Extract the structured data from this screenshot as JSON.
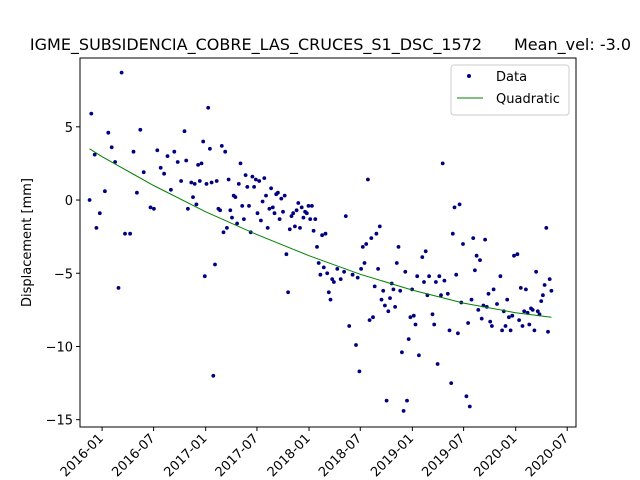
{
  "chart_data": {
    "type": "scatter",
    "title": "IGME_SUBSIDENCIA_COBRE_LAS_CRUCES_S1_DSC_1572",
    "subtitle": "Mean_vel: -3.0",
    "xlabel": "",
    "ylabel": "Displacement [mm]",
    "xlim": [
      "2015-10-15",
      "2020-08-01"
    ],
    "ylim": [
      -15.5,
      9.7
    ],
    "x_ticks": [
      "2016-01",
      "2016-07",
      "2017-01",
      "2017-07",
      "2018-01",
      "2018-07",
      "2019-01",
      "2019-07",
      "2020-01",
      "2020-07"
    ],
    "y_ticks": [
      -15,
      -10,
      -5,
      0,
      5
    ],
    "grid": false,
    "legend_position": "top-right",
    "colors": {
      "data": "#000080",
      "fit": "#008000"
    },
    "series": [
      {
        "name": "Data",
        "kind": "markers",
        "points": [
          [
            "2015-11-18",
            0.0
          ],
          [
            "2015-11-24",
            5.9
          ],
          [
            "2015-12-06",
            3.1
          ],
          [
            "2015-12-12",
            -1.9
          ],
          [
            "2015-12-24",
            -0.9
          ],
          [
            "2016-01-11",
            0.6
          ],
          [
            "2016-01-23",
            4.6
          ],
          [
            "2016-02-04",
            3.6
          ],
          [
            "2016-02-16",
            2.6
          ],
          [
            "2016-02-28",
            -6.0
          ],
          [
            "2016-03-10",
            8.7
          ],
          [
            "2016-03-22",
            -2.3
          ],
          [
            "2016-04-09",
            -2.3
          ],
          [
            "2016-04-21",
            3.3
          ],
          [
            "2016-05-03",
            0.5
          ],
          [
            "2016-05-15",
            4.8
          ],
          [
            "2016-05-27",
            1.9
          ],
          [
            "2016-06-20",
            -0.5
          ],
          [
            "2016-07-02",
            -0.6
          ],
          [
            "2016-07-14",
            3.4
          ],
          [
            "2016-07-26",
            2.2
          ],
          [
            "2016-08-07",
            1.8
          ],
          [
            "2016-08-19",
            3.0
          ],
          [
            "2016-08-31",
            0.7
          ],
          [
            "2016-09-12",
            3.3
          ],
          [
            "2016-09-24",
            2.6
          ],
          [
            "2016-10-06",
            1.3
          ],
          [
            "2016-10-18",
            4.7
          ],
          [
            "2016-10-24",
            2.7
          ],
          [
            "2016-10-30",
            -0.6
          ],
          [
            "2016-11-11",
            1.2
          ],
          [
            "2016-11-17",
            0.2
          ],
          [
            "2016-11-23",
            1.1
          ],
          [
            "2016-11-29",
            -0.3
          ],
          [
            "2016-12-05",
            2.4
          ],
          [
            "2016-12-11",
            1.3
          ],
          [
            "2016-12-17",
            2.5
          ],
          [
            "2016-12-23",
            4.0
          ],
          [
            "2016-12-29",
            -5.2
          ],
          [
            "2017-01-04",
            1.1
          ],
          [
            "2017-01-10",
            6.3
          ],
          [
            "2017-01-16",
            3.5
          ],
          [
            "2017-01-22",
            1.2
          ],
          [
            "2017-01-28",
            -12.0
          ],
          [
            "2017-02-03",
            -4.4
          ],
          [
            "2017-02-09",
            1.3
          ],
          [
            "2017-02-15",
            -0.6
          ],
          [
            "2017-02-21",
            -0.7
          ],
          [
            "2017-02-27",
            3.7
          ],
          [
            "2017-03-05",
            -2.2
          ],
          [
            "2017-03-11",
            3.3
          ],
          [
            "2017-03-17",
            -1.9
          ],
          [
            "2017-03-23",
            1.4
          ],
          [
            "2017-03-29",
            -0.7
          ],
          [
            "2017-04-04",
            -1.2
          ],
          [
            "2017-04-10",
            0.3
          ],
          [
            "2017-04-16",
            0.2
          ],
          [
            "2017-04-22",
            -1.6
          ],
          [
            "2017-04-28",
            1.1
          ],
          [
            "2017-05-04",
            2.5
          ],
          [
            "2017-05-10",
            -0.4
          ],
          [
            "2017-05-16",
            -1.3
          ],
          [
            "2017-05-22",
            1.7
          ],
          [
            "2017-05-28",
            0.9
          ],
          [
            "2017-06-03",
            -0.4
          ],
          [
            "2017-06-09",
            -2.2
          ],
          [
            "2017-06-15",
            1.6
          ],
          [
            "2017-06-21",
            0.9
          ],
          [
            "2017-06-27",
            1.4
          ],
          [
            "2017-07-03",
            -0.9
          ],
          [
            "2017-07-09",
            1.3
          ],
          [
            "2017-07-15",
            -1.4
          ],
          [
            "2017-07-21",
            -0.1
          ],
          [
            "2017-07-27",
            1.5
          ],
          [
            "2017-08-02",
            0.3
          ],
          [
            "2017-08-08",
            -1.9
          ],
          [
            "2017-08-14",
            -0.6
          ],
          [
            "2017-08-20",
            0.8
          ],
          [
            "2017-08-26",
            -0.5
          ],
          [
            "2017-09-01",
            -0.9
          ],
          [
            "2017-09-07",
            0.4
          ],
          [
            "2017-09-13",
            0.5
          ],
          [
            "2017-09-19",
            -1.3
          ],
          [
            "2017-09-25",
            0.1
          ],
          [
            "2017-10-01",
            -0.8
          ],
          [
            "2017-10-07",
            0.3
          ],
          [
            "2017-10-13",
            -3.7
          ],
          [
            "2017-10-19",
            -6.3
          ],
          [
            "2017-10-25",
            -2.0
          ],
          [
            "2017-10-31",
            -1.1
          ],
          [
            "2017-11-06",
            -0.9
          ],
          [
            "2017-11-12",
            -1.8
          ],
          [
            "2017-11-18",
            -0.7
          ],
          [
            "2017-11-24",
            -0.2
          ],
          [
            "2017-11-30",
            -1.9
          ],
          [
            "2017-12-06",
            -0.5
          ],
          [
            "2017-12-12",
            -1.2
          ],
          [
            "2017-12-18",
            -0.8
          ],
          [
            "2017-12-24",
            -0.9
          ],
          [
            "2017-12-30",
            -0.4
          ],
          [
            "2018-01-05",
            -1.3
          ],
          [
            "2018-01-11",
            -0.4
          ],
          [
            "2018-01-17",
            -2.1
          ],
          [
            "2018-01-23",
            -1.3
          ],
          [
            "2018-01-29",
            -3.2
          ],
          [
            "2018-02-04",
            -4.3
          ],
          [
            "2018-02-10",
            -5.1
          ],
          [
            "2018-02-16",
            -2.4
          ],
          [
            "2018-02-22",
            -4.6
          ],
          [
            "2018-02-28",
            -2.3
          ],
          [
            "2018-03-06",
            -5.0
          ],
          [
            "2018-03-12",
            -6.3
          ],
          [
            "2018-03-18",
            -6.8
          ],
          [
            "2018-03-24",
            -5.4
          ],
          [
            "2018-03-30",
            -5.6
          ],
          [
            "2018-04-11",
            -4.7
          ],
          [
            "2018-04-23",
            -5.4
          ],
          [
            "2018-05-05",
            -4.9
          ],
          [
            "2018-05-11",
            -1.1
          ],
          [
            "2018-05-23",
            -8.6
          ],
          [
            "2018-06-04",
            -5.1
          ],
          [
            "2018-06-16",
            -9.9
          ],
          [
            "2018-06-22",
            -5.3
          ],
          [
            "2018-06-28",
            -11.7
          ],
          [
            "2018-07-04",
            -4.7
          ],
          [
            "2018-07-10",
            -3.2
          ],
          [
            "2018-07-16",
            -4.3
          ],
          [
            "2018-07-22",
            -3.0
          ],
          [
            "2018-07-28",
            1.4
          ],
          [
            "2018-08-03",
            -8.2
          ],
          [
            "2018-08-09",
            -2.6
          ],
          [
            "2018-08-15",
            -8.0
          ],
          [
            "2018-08-21",
            -5.9
          ],
          [
            "2018-08-27",
            -2.3
          ],
          [
            "2018-09-02",
            -4.7
          ],
          [
            "2018-09-08",
            -1.8
          ],
          [
            "2018-09-14",
            -6.8
          ],
          [
            "2018-09-20",
            -6.2
          ],
          [
            "2018-09-26",
            -7.2
          ],
          [
            "2018-10-02",
            -13.7
          ],
          [
            "2018-10-08",
            -7.6
          ],
          [
            "2018-10-14",
            -6.7
          ],
          [
            "2018-10-20",
            -5.7
          ],
          [
            "2018-10-26",
            -6.1
          ],
          [
            "2018-11-01",
            -7.3
          ],
          [
            "2018-11-07",
            -4.3
          ],
          [
            "2018-11-13",
            -3.2
          ],
          [
            "2018-11-19",
            -6.2
          ],
          [
            "2018-11-25",
            -10.4
          ],
          [
            "2018-12-01",
            -14.4
          ],
          [
            "2018-12-07",
            -4.9
          ],
          [
            "2018-12-13",
            -13.7
          ],
          [
            "2018-12-19",
            -9.5
          ],
          [
            "2018-12-25",
            -8.0
          ],
          [
            "2018-12-31",
            -6.1
          ],
          [
            "2019-01-06",
            -7.9
          ],
          [
            "2019-01-12",
            -8.5
          ],
          [
            "2019-01-18",
            -5.2
          ],
          [
            "2019-01-24",
            -10.6
          ],
          [
            "2019-02-05",
            -3.9
          ],
          [
            "2019-02-11",
            -5.6
          ],
          [
            "2019-02-17",
            -3.5
          ],
          [
            "2019-02-23",
            -6.5
          ],
          [
            "2019-03-01",
            -5.2
          ],
          [
            "2019-03-13",
            -7.8
          ],
          [
            "2019-03-19",
            -8.5
          ],
          [
            "2019-03-25",
            -5.6
          ],
          [
            "2019-03-31",
            -11.2
          ],
          [
            "2019-04-06",
            -5.2
          ],
          [
            "2019-04-12",
            -6.5
          ],
          [
            "2019-04-18",
            2.5
          ],
          [
            "2019-04-24",
            -5.5
          ],
          [
            "2019-05-06",
            -6.4
          ],
          [
            "2019-05-12",
            -8.9
          ],
          [
            "2019-05-18",
            -12.5
          ],
          [
            "2019-05-24",
            -2.3
          ],
          [
            "2019-05-30",
            -0.5
          ],
          [
            "2019-06-05",
            -5.1
          ],
          [
            "2019-06-11",
            -9.1
          ],
          [
            "2019-06-17",
            -0.3
          ],
          [
            "2019-06-23",
            -7.0
          ],
          [
            "2019-06-29",
            -3.0
          ],
          [
            "2019-07-11",
            -13.4
          ],
          [
            "2019-07-17",
            -8.4
          ],
          [
            "2019-07-23",
            -14.1
          ],
          [
            "2019-07-29",
            -6.8
          ],
          [
            "2019-08-04",
            -2.6
          ],
          [
            "2019-08-10",
            -4.8
          ],
          [
            "2019-08-16",
            -3.8
          ],
          [
            "2019-08-22",
            -7.5
          ],
          [
            "2019-08-28",
            -4.1
          ],
          [
            "2019-09-03",
            -8.1
          ],
          [
            "2019-09-09",
            -7.2
          ],
          [
            "2019-09-15",
            -2.7
          ],
          [
            "2019-09-21",
            -7.3
          ],
          [
            "2019-09-27",
            -6.4
          ],
          [
            "2019-10-03",
            -8.3
          ],
          [
            "2019-10-09",
            -8.6
          ],
          [
            "2019-10-15",
            -6.1
          ],
          [
            "2019-10-27",
            -7.1
          ],
          [
            "2019-11-08",
            -5.2
          ],
          [
            "2019-11-14",
            -8.9
          ],
          [
            "2019-11-20",
            -7.6
          ],
          [
            "2019-11-26",
            -8.6
          ],
          [
            "2019-12-02",
            -6.8
          ],
          [
            "2019-12-08",
            -8.0
          ],
          [
            "2019-12-14",
            -8.9
          ],
          [
            "2019-12-20",
            -7.9
          ],
          [
            "2019-12-26",
            -3.8
          ],
          [
            "2020-01-07",
            -3.7
          ],
          [
            "2020-01-13",
            -8.2
          ],
          [
            "2020-01-19",
            -6.0
          ],
          [
            "2020-01-25",
            -8.6
          ],
          [
            "2020-01-31",
            -7.6
          ],
          [
            "2020-02-06",
            -6.1
          ],
          [
            "2020-02-12",
            -7.7
          ],
          [
            "2020-02-18",
            -8.5
          ],
          [
            "2020-02-24",
            -7.4
          ],
          [
            "2020-03-01",
            -7.5
          ],
          [
            "2020-03-07",
            -8.9
          ],
          [
            "2020-03-13",
            -4.9
          ],
          [
            "2020-03-19",
            -7.6
          ],
          [
            "2020-03-25",
            -7.8
          ],
          [
            "2020-03-31",
            -6.9
          ],
          [
            "2020-04-06",
            -6.5
          ],
          [
            "2020-04-12",
            -5.8
          ],
          [
            "2020-04-18",
            -1.9
          ],
          [
            "2020-04-24",
            -9.0
          ],
          [
            "2020-04-30",
            -5.4
          ],
          [
            "2020-05-06",
            -6.2
          ]
        ]
      },
      {
        "name": "Quadratic",
        "kind": "line",
        "points": [
          [
            "2015-11-18",
            3.5
          ],
          [
            "2016-01-01",
            2.96
          ],
          [
            "2016-07-01",
            0.99
          ],
          [
            "2017-01-01",
            -0.8
          ],
          [
            "2017-07-01",
            -2.36
          ],
          [
            "2018-01-01",
            -3.8
          ],
          [
            "2018-07-01",
            -5.07
          ],
          [
            "2019-01-01",
            -6.15
          ],
          [
            "2019-07-01",
            -7.04
          ],
          [
            "2020-01-01",
            -7.7
          ],
          [
            "2020-05-06",
            -8.0
          ]
        ]
      }
    ]
  }
}
